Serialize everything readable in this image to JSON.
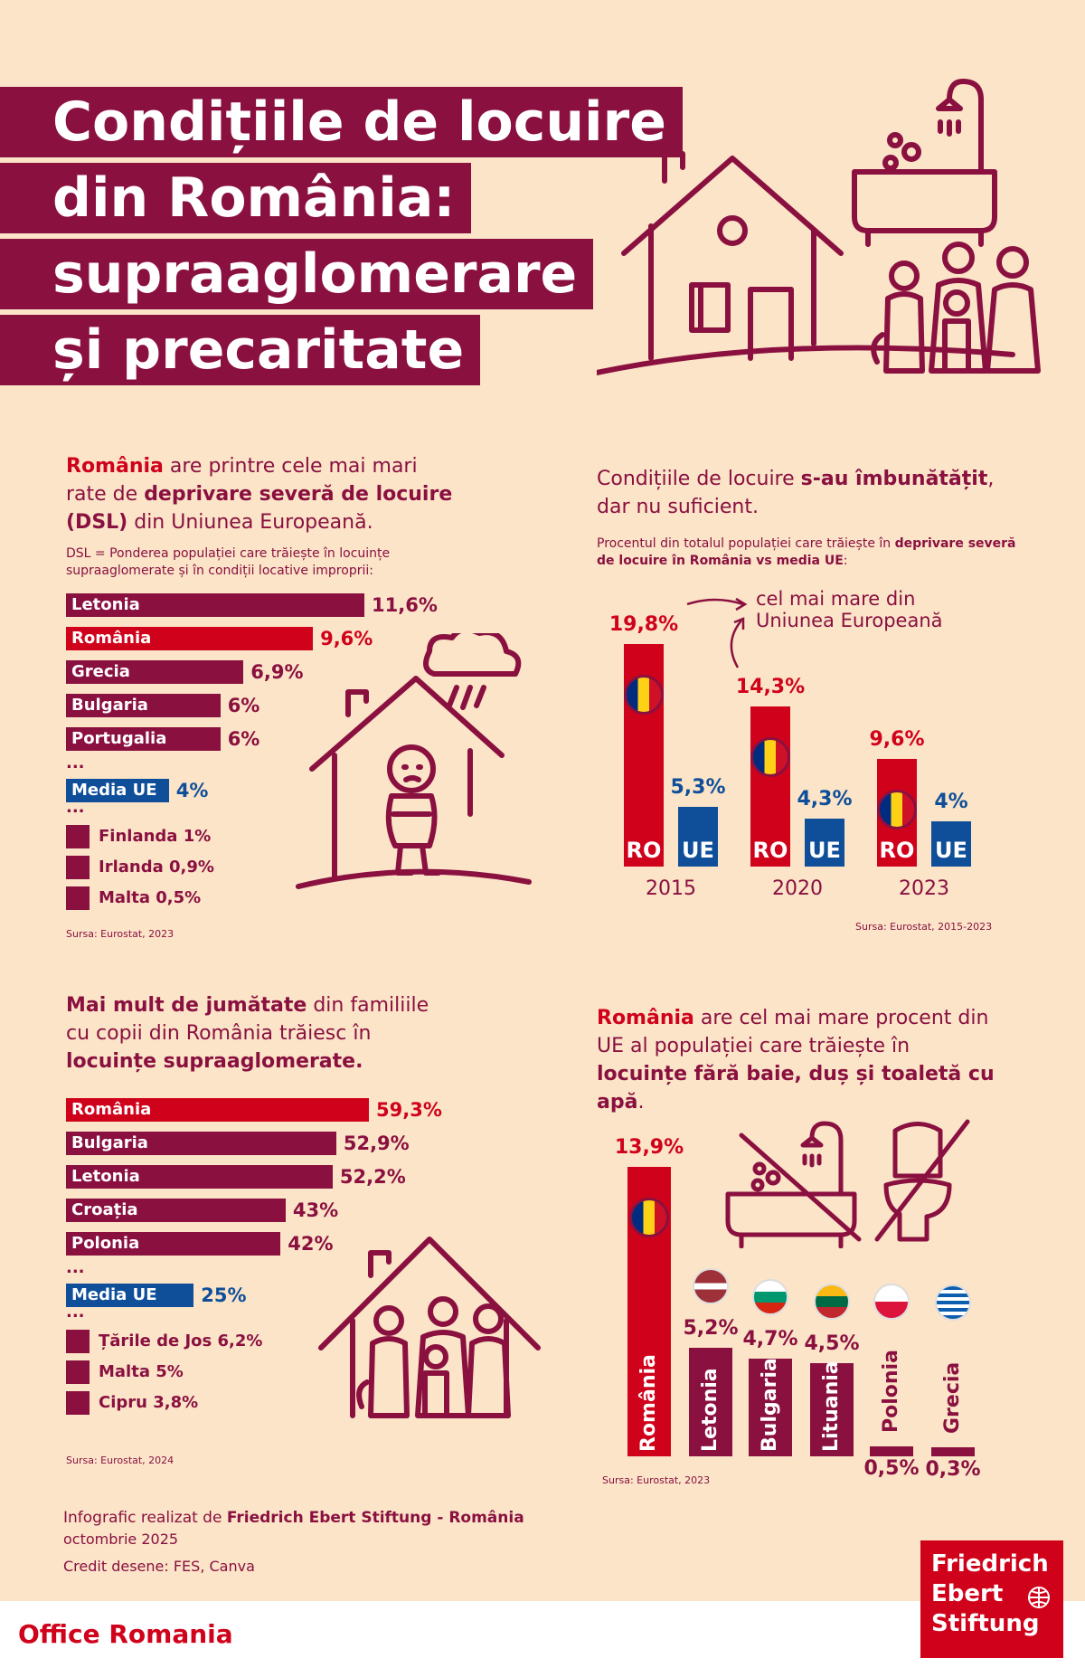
{
  "title": {
    "lines": [
      "Condițiile de locuire",
      "din România:",
      "supraaglomerare",
      "și precaritate"
    ]
  },
  "section1": {
    "intro": {
      "p1": "România",
      "p2": " are printre cele mai mari rate de ",
      "p3": "deprivare severă de locuire (DSL)",
      "p4": " din Uniunea Europeană."
    },
    "note": "DSL = Ponderea populației care trăiește în locuințe supraaglomerate și în condiții locative improprii:",
    "source": "Sursa: Eurostat, 2023"
  },
  "section2": {
    "intro": {
      "p1": "Condițiile de locuire ",
      "p2": "s-au îmbunătățit",
      "p3": ", dar nu suficient."
    },
    "note": {
      "p1": "Procentul din totalul populației care trăiește în ",
      "p2": "deprivare severă de locuire în România vs media UE",
      "p3": ":"
    },
    "annotation": "cel mai mare din Uniunea Europeană",
    "source": "Sursa: Eurostat, 2015-2023"
  },
  "section3": {
    "intro": {
      "p1": "Mai mult de jumătate",
      "p2": " din familiile cu copii din România trăiesc în ",
      "p3": "locuințe supraaglomerate."
    },
    "source": "Sursa: Eurostat, 2024"
  },
  "section4": {
    "intro": {
      "p1": "România",
      "p2": " are cel mai mare procent din UE al populației care trăiește în ",
      "p3": "locuințe fără baie, duș și toaletă cu apă",
      "p4": "."
    },
    "source": "Sursa: Eurostat, 2023"
  },
  "footer": {
    "credit_p1": "Infografic realizat de ",
    "credit_p2": "Friedrich Ebert Stiftung - România",
    "date": "octombrie 2025",
    "drawings": "Credit desene: FES, Canva",
    "office": "Office Romania",
    "logo_lines": [
      "Friedrich",
      "Ebert",
      "Stiftung"
    ]
  },
  "colors": {
    "burgundy": "#8a1040",
    "red": "#d0021b",
    "blue": "#0f4f99",
    "background": "#fbe4c8"
  },
  "chart_data": [
    {
      "type": "bar",
      "orientation": "horizontal",
      "categories": [
        "Letonia",
        "România",
        "Grecia",
        "Bulgaria",
        "Portugalia",
        "Media UE",
        "Finlanda",
        "Irlanda",
        "Malta"
      ],
      "values": [
        11.6,
        9.6,
        6.9,
        6,
        6,
        4,
        1,
        0.9,
        0.5
      ],
      "labels": [
        "11,6%",
        "9,6%",
        "6,9%",
        "6%",
        "6%",
        "4%",
        "1%",
        "0,9%",
        "0,5%"
      ],
      "ellipsis": "..."
    },
    {
      "type": "bar",
      "orientation": "vertical",
      "categories": [
        "2015",
        "2020",
        "2023"
      ],
      "series": [
        {
          "name": "RO",
          "values": [
            19.8,
            14.3,
            9.6
          ],
          "labels": [
            "19,8%",
            "14,3%",
            "9,6%"
          ]
        },
        {
          "name": "UE",
          "values": [
            5.3,
            4.3,
            4
          ],
          "labels": [
            "5,3%",
            "4,3%",
            "4%"
          ]
        }
      ]
    },
    {
      "type": "bar",
      "orientation": "horizontal",
      "categories": [
        "România",
        "Bulgaria",
        "Letonia",
        "Croația",
        "Polonia",
        "Media UE",
        "Țările de Jos",
        "Malta",
        "Cipru"
      ],
      "values": [
        59.3,
        52.9,
        52.2,
        43,
        42,
        25,
        6.2,
        5,
        3.8
      ],
      "labels": [
        "59,3%",
        "52,9%",
        "52,2%",
        "43%",
        "42%",
        "25%",
        "6,2%",
        "5%",
        "3,8%"
      ],
      "ellipsis": "..."
    },
    {
      "type": "bar",
      "orientation": "vertical",
      "categories": [
        "România",
        "Letonia",
        "Bulgaria",
        "Lituania",
        "Polonia",
        "Grecia"
      ],
      "values": [
        13.9,
        5.2,
        4.7,
        4.5,
        0.5,
        0.3
      ],
      "labels": [
        "13,9%",
        "5,2%",
        "4,7%",
        "4,5%",
        "0,5%",
        "0,3%"
      ]
    }
  ]
}
